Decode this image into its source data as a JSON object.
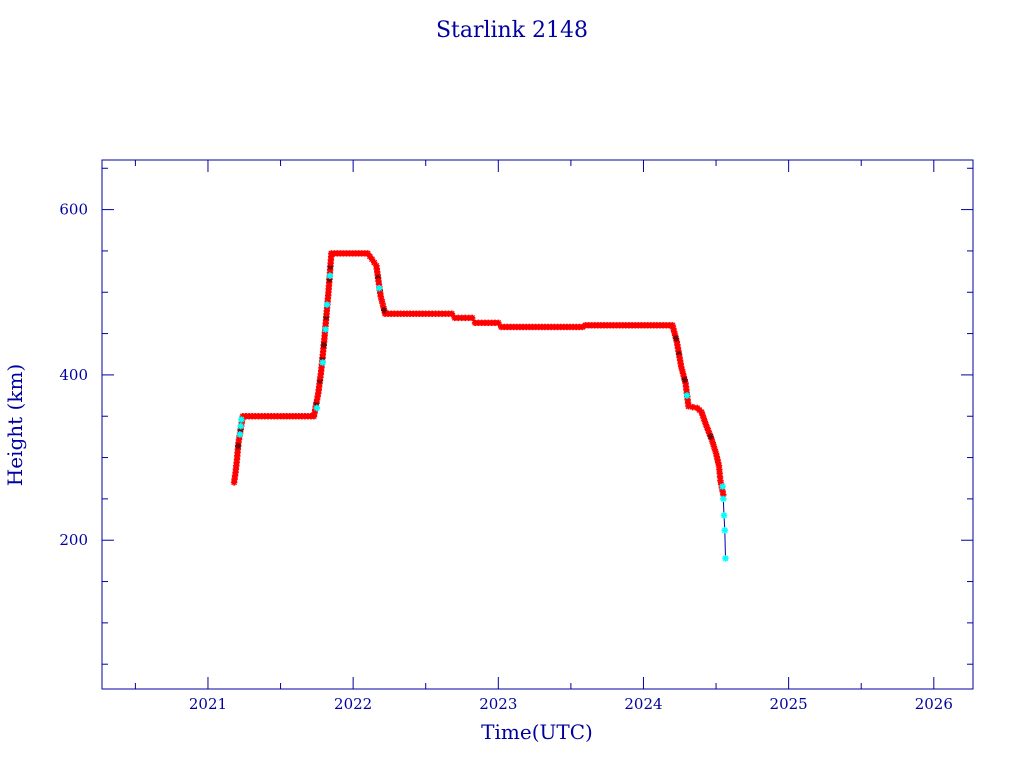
{
  "chart_data": {
    "type": "scatter",
    "title": "Starlink 2148",
    "xlabel": "Time(UTC)",
    "ylabel": "Height (km)",
    "xlim": [
      2020.27,
      2026.27
    ],
    "ylim": [
      20,
      660
    ],
    "x_ticks": [
      2021,
      2022,
      2023,
      2024,
      2025,
      2026
    ],
    "x_tick_labels": [
      "2021",
      "2022",
      "2023",
      "2024",
      "2025",
      "2026"
    ],
    "y_ticks": [
      200,
      400,
      600
    ],
    "y_tick_labels": [
      "200",
      "400",
      "600"
    ],
    "x_minor_ticks": [
      2020.5,
      2021.5,
      2022.5,
      2023.5,
      2024.5,
      2025.5
    ],
    "y_minor_ticks": [
      50,
      100,
      150,
      250,
      300,
      350,
      450,
      500,
      550,
      650
    ],
    "grid": false,
    "colors": {
      "main_series": "#ff0000",
      "highlight_series": "#00ffff",
      "marker_dark": "#800000",
      "connector_line": "#0000a0",
      "axes": "#0000a0"
    },
    "series": [
      {
        "marker": "star",
        "color": "#ff0000",
        "points": [
          [
            2021.18,
            270
          ],
          [
            2021.19,
            282
          ],
          [
            2021.2,
            298
          ],
          [
            2021.21,
            318
          ],
          [
            2021.24,
            350
          ],
          [
            2021.5,
            350
          ],
          [
            2021.73,
            350
          ],
          [
            2021.76,
            378
          ],
          [
            2021.78,
            405
          ],
          [
            2021.8,
            440
          ],
          [
            2021.83,
            500
          ],
          [
            2021.85,
            547
          ],
          [
            2022.1,
            547
          ],
          [
            2022.13,
            540
          ],
          [
            2022.16,
            532
          ],
          [
            2022.19,
            495
          ],
          [
            2022.22,
            474
          ],
          [
            2022.5,
            474
          ],
          [
            2022.68,
            474
          ],
          [
            2022.7,
            469
          ],
          [
            2022.82,
            469
          ],
          [
            2022.84,
            463
          ],
          [
            2023.0,
            463
          ],
          [
            2023.02,
            458
          ],
          [
            2023.3,
            458
          ],
          [
            2023.58,
            458
          ],
          [
            2023.6,
            460
          ],
          [
            2023.9,
            460
          ],
          [
            2024.2,
            460
          ],
          [
            2024.23,
            440
          ],
          [
            2024.26,
            410
          ],
          [
            2024.29,
            390
          ],
          [
            2024.31,
            362
          ],
          [
            2024.37,
            360
          ],
          [
            2024.4,
            355
          ],
          [
            2024.43,
            340
          ],
          [
            2024.47,
            322
          ],
          [
            2024.5,
            305
          ],
          [
            2024.52,
            290
          ],
          [
            2024.53,
            272
          ],
          [
            2024.55,
            255
          ]
        ]
      },
      {
        "marker": "star",
        "color": "#00ffff",
        "points": [
          [
            2021.22,
            328
          ],
          [
            2021.225,
            338
          ],
          [
            2021.23,
            346
          ],
          [
            2021.75,
            360
          ],
          [
            2021.79,
            415
          ],
          [
            2021.81,
            455
          ],
          [
            2021.82,
            485
          ],
          [
            2021.84,
            520
          ],
          [
            2022.18,
            505
          ],
          [
            2024.3,
            375
          ],
          [
            2024.545,
            265
          ],
          [
            2024.55,
            250
          ],
          [
            2024.555,
            230
          ],
          [
            2024.56,
            212
          ],
          [
            2024.565,
            178
          ]
        ]
      }
    ]
  }
}
